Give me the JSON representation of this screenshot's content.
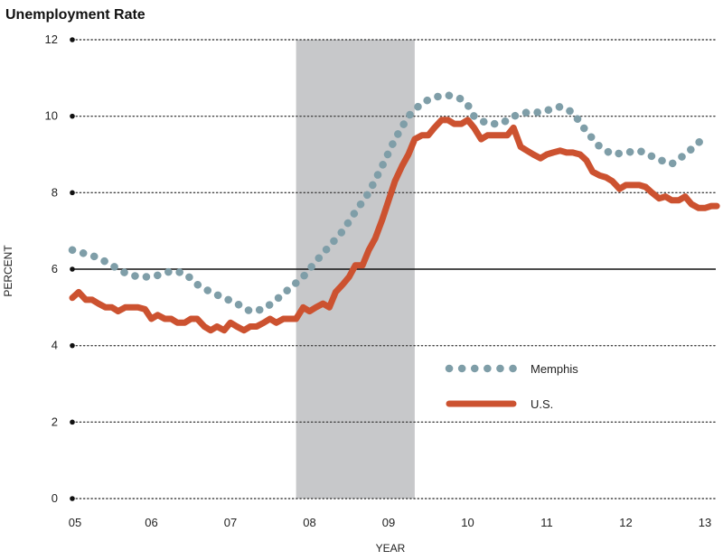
{
  "chart_data": {
    "type": "line",
    "title": "Unemployment Rate",
    "xlabel": "YEAR",
    "ylabel": "PERCENT",
    "xlim": [
      2005.0,
      2013.15
    ],
    "ylim": [
      0,
      12
    ],
    "yticks": [
      0,
      2,
      4,
      6,
      8,
      10,
      12
    ],
    "xticks": [
      {
        "value": 2005,
        "label": "05"
      },
      {
        "value": 2006,
        "label": "06"
      },
      {
        "value": 2007,
        "label": "07"
      },
      {
        "value": 2008,
        "label": "08"
      },
      {
        "value": 2009,
        "label": "09"
      },
      {
        "value": 2010,
        "label": "10"
      },
      {
        "value": 2011,
        "label": "11"
      },
      {
        "value": 2012,
        "label": "12"
      },
      {
        "value": 2013,
        "label": "13"
      }
    ],
    "grid": "horizontal-dotted",
    "reference_line": 6,
    "recession_band": [
      2007.83,
      2009.33
    ],
    "legend_position": "lower-right",
    "colors": {
      "memphis": "#7f9ea8",
      "us": "#cc5230",
      "recession": "#c7c8ca"
    },
    "series": [
      {
        "name": "Memphis",
        "style": "dotted",
        "color": "#7f9ea8",
        "x": [
          2005.0,
          2005.17,
          2005.33,
          2005.5,
          2005.67,
          2005.83,
          2006.0,
          2006.1,
          2006.25,
          2006.42,
          2006.58,
          2006.75,
          2006.92,
          2007.08,
          2007.25,
          2007.42,
          2007.58,
          2007.75,
          2007.92,
          2008.08,
          2008.25,
          2008.42,
          2008.58,
          2008.75,
          2008.92,
          2009.08,
          2009.25,
          2009.42,
          2009.58,
          2009.75,
          2009.92,
          2010.0,
          2010.08,
          2010.25,
          2010.42,
          2010.58,
          2010.75,
          2010.92,
          2011.08,
          2011.17,
          2011.33,
          2011.5,
          2011.67,
          2011.83,
          2012.0,
          2012.17,
          2012.33,
          2012.5,
          2012.58,
          2012.75,
          2012.92,
          2013.0
        ],
        "values": [
          6.5,
          6.4,
          6.3,
          6.1,
          5.9,
          5.8,
          5.8,
          5.85,
          5.95,
          5.9,
          5.6,
          5.4,
          5.25,
          5.1,
          4.9,
          4.95,
          5.2,
          5.5,
          5.8,
          6.2,
          6.6,
          7.0,
          7.5,
          8.0,
          8.7,
          9.4,
          10.0,
          10.35,
          10.5,
          10.55,
          10.45,
          10.3,
          10.0,
          9.8,
          9.8,
          10.0,
          10.1,
          10.1,
          10.2,
          10.25,
          10.1,
          9.6,
          9.2,
          9.0,
          9.05,
          9.1,
          8.95,
          8.8,
          8.75,
          9.0,
          9.3,
          9.55
        ]
      },
      {
        "name": "U.S.",
        "style": "solid",
        "color": "#cc5230",
        "x": [
          2005.0,
          2005.08,
          2005.17,
          2005.25,
          2005.33,
          2005.42,
          2005.5,
          2005.58,
          2005.67,
          2005.75,
          2005.83,
          2005.92,
          2006.0,
          2006.08,
          2006.17,
          2006.25,
          2006.33,
          2006.42,
          2006.5,
          2006.58,
          2006.67,
          2006.75,
          2006.83,
          2006.92,
          2007.0,
          2007.08,
          2007.17,
          2007.25,
          2007.33,
          2007.42,
          2007.5,
          2007.58,
          2007.67,
          2007.75,
          2007.83,
          2007.92,
          2008.0,
          2008.08,
          2008.17,
          2008.25,
          2008.33,
          2008.42,
          2008.5,
          2008.58,
          2008.67,
          2008.75,
          2008.83,
          2008.92,
          2009.0,
          2009.08,
          2009.17,
          2009.25,
          2009.33,
          2009.42,
          2009.5,
          2009.58,
          2009.67,
          2009.75,
          2009.83,
          2009.92,
          2010.0,
          2010.08,
          2010.17,
          2010.25,
          2010.33,
          2010.42,
          2010.5,
          2010.58,
          2010.67,
          2010.75,
          2010.83,
          2010.92,
          2011.0,
          2011.08,
          2011.17,
          2011.25,
          2011.33,
          2011.42,
          2011.5,
          2011.58,
          2011.67,
          2011.75,
          2011.83,
          2011.92,
          2012.0,
          2012.08,
          2012.17,
          2012.25,
          2012.33,
          2012.42,
          2012.5,
          2012.58,
          2012.67,
          2012.75,
          2012.83,
          2012.92,
          2013.0,
          2013.08,
          2013.15
        ],
        "values": [
          5.25,
          5.4,
          5.2,
          5.2,
          5.1,
          5.0,
          5.0,
          4.9,
          5.0,
          5.0,
          5.0,
          4.95,
          4.7,
          4.8,
          4.7,
          4.7,
          4.6,
          4.6,
          4.7,
          4.7,
          4.5,
          4.4,
          4.5,
          4.4,
          4.6,
          4.5,
          4.4,
          4.5,
          4.5,
          4.6,
          4.7,
          4.6,
          4.7,
          4.7,
          4.7,
          5.0,
          4.9,
          5.0,
          5.1,
          5.0,
          5.4,
          5.6,
          5.8,
          6.1,
          6.1,
          6.5,
          6.8,
          7.3,
          7.8,
          8.3,
          8.7,
          9.0,
          9.4,
          9.5,
          9.5,
          9.7,
          9.9,
          9.9,
          9.8,
          9.8,
          9.9,
          9.7,
          9.4,
          9.5,
          9.5,
          9.5,
          9.5,
          9.7,
          9.2,
          9.1,
          9.0,
          8.9,
          9.0,
          9.05,
          9.1,
          9.05,
          9.05,
          9.0,
          8.85,
          8.55,
          8.45,
          8.4,
          8.3,
          8.1,
          8.2,
          8.2,
          8.2,
          8.15,
          8.0,
          7.85,
          7.9,
          7.8,
          7.8,
          7.9,
          7.7,
          7.6,
          7.6,
          7.65,
          7.65
        ]
      }
    ]
  }
}
